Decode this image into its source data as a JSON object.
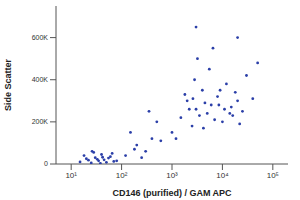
{
  "chart_data": {
    "type": "scatter",
    "x_label": "CD146 (purified) / GAM APC",
    "y_label": "Side Scatter",
    "log": "x",
    "grid": false,
    "color": "#2b3fa8",
    "marker": "circle",
    "xlim": [
      5,
      200000
    ],
    "xticks": [
      {
        "value": 10,
        "label": "10¹"
      },
      {
        "value": 100,
        "label": "10²"
      },
      {
        "value": 1000,
        "label": "10³"
      },
      {
        "value": 10000,
        "label": "10⁴"
      },
      {
        "value": 100000,
        "label": "10⁵"
      }
    ],
    "ylim": [
      0,
      750000
    ],
    "yticks": [
      0,
      {
        "value": 200000,
        "label": "200K"
      },
      {
        "value": 400000,
        "label": "400K"
      },
      {
        "value": 600000,
        "label": "600K"
      }
    ],
    "x": [
      15,
      20,
      25,
      30,
      35,
      40,
      45,
      50,
      60,
      70,
      18,
      22,
      28,
      33,
      38,
      55,
      65,
      80,
      26,
      42,
      120,
      200,
      300,
      150,
      400,
      250,
      500,
      180,
      350,
      600,
      1000,
      1500,
      2000,
      2500,
      3000,
      4000,
      5000,
      6000,
      8000,
      10000,
      12000,
      15000,
      20000,
      25000,
      30000,
      40000,
      1200,
      1800,
      2200,
      2800,
      3500,
      4500,
      5500,
      7000,
      9000,
      11000,
      14000,
      18000,
      22000,
      3200,
      6500,
      8500,
      2600,
      4200,
      16000,
      3000,
      20000,
      50000
    ],
    "values": [
      10000,
      25000,
      5000,
      30000,
      15000,
      45000,
      20000,
      8000,
      35000,
      12000,
      40000,
      18000,
      55000,
      22000,
      3000,
      28000,
      50000,
      15000,
      60000,
      32000,
      40000,
      90000,
      60000,
      150000,
      120000,
      30000,
      200000,
      70000,
      250000,
      110000,
      150000,
      220000,
      300000,
      180000,
      260000,
      350000,
      240000,
      280000,
      320000,
      200000,
      380000,
      270000,
      300000,
      250000,
      420000,
      310000,
      120000,
      330000,
      260000,
      400000,
      230000,
      290000,
      450000,
      210000,
      350000,
      260000,
      240000,
      340000,
      190000,
      500000,
      550000,
      280000,
      310000,
      170000,
      230000,
      650000,
      600000,
      480000
    ]
  }
}
